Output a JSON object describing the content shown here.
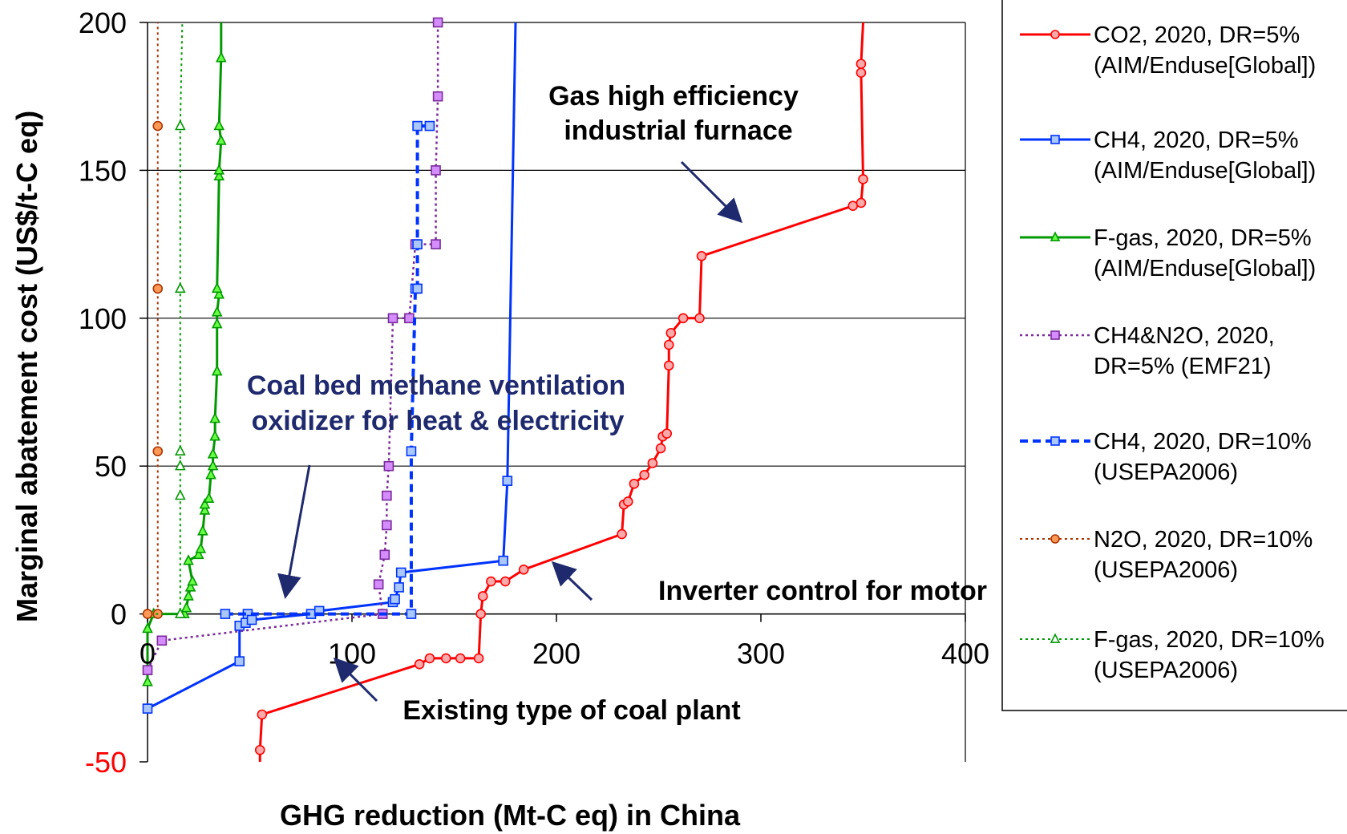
{
  "chart_data": {
    "type": "line",
    "xlabel": "GHG reduction (Mt-C eq) in China",
    "ylabel": "Marginal abatement cost (US$/t-C eq)",
    "xlim": [
      0,
      400
    ],
    "ylim": [
      -50,
      200
    ],
    "xticks": [
      0,
      100,
      200,
      300,
      400
    ],
    "yticks": [
      -50,
      0,
      50,
      100,
      150,
      200
    ],
    "xtick_labels": [
      "0",
      "100",
      "200",
      "300",
      "400"
    ],
    "ytick_labels": [
      "-50",
      "0",
      "50",
      "100",
      "150",
      "200"
    ],
    "ytick_colors": [
      "#ff0000",
      "#000000",
      "#000000",
      "#000000",
      "#000000",
      "#000000"
    ],
    "grid": "horizontal",
    "legend_position": "right",
    "series": [
      {
        "name": "CO2, 2020, DR=5% (AIM/Enduse[Global])",
        "legend_lines": [
          "CO2, 2020, DR=5%",
          "(AIM/Enduse[Global])"
        ],
        "color": "#ff0000",
        "dash": "solid",
        "marker": "circle",
        "marker_fill": "#ffaaaa",
        "stroke_width": 3,
        "points": [
          [
            55,
            -50
          ],
          [
            55,
            -46
          ],
          [
            56,
            -34
          ],
          [
            133,
            -17
          ],
          [
            138,
            -15
          ],
          [
            146,
            -15
          ],
          [
            153,
            -15
          ],
          [
            162,
            -15
          ],
          [
            163,
            0
          ],
          [
            164,
            6
          ],
          [
            168,
            11
          ],
          [
            175,
            11
          ],
          [
            184,
            15
          ],
          [
            232,
            27
          ],
          [
            233,
            37
          ],
          [
            235,
            38
          ],
          [
            238,
            44
          ],
          [
            243,
            47
          ],
          [
            247,
            51
          ],
          [
            251,
            56
          ],
          [
            252,
            60
          ],
          [
            254,
            61
          ],
          [
            255,
            84
          ],
          [
            255,
            91
          ],
          [
            256,
            95
          ],
          [
            262,
            100
          ],
          [
            270,
            100
          ],
          [
            271,
            121
          ],
          [
            345,
            138
          ],
          [
            349,
            139
          ],
          [
            350,
            147
          ],
          [
            349,
            183
          ],
          [
            349,
            186
          ],
          [
            350,
            200
          ]
        ],
        "plain_points": [
          0,
          33
        ]
      },
      {
        "name": "CH4, 2020, DR=5% (AIM/Enduse[Global])",
        "legend_lines": [
          "CH4, 2020, DR=5%",
          "(AIM/Enduse[Global])"
        ],
        "color": "#0033ff",
        "dash": "solid",
        "marker": "square",
        "marker_fill": "#aac8ff",
        "stroke_width": 3,
        "points": [
          [
            0,
            -32
          ],
          [
            45,
            -16
          ],
          [
            45,
            -4
          ],
          [
            48,
            -3
          ],
          [
            49,
            0
          ],
          [
            51,
            -2
          ],
          [
            80,
            0
          ],
          [
            84,
            1
          ],
          [
            120,
            4
          ],
          [
            121,
            5
          ],
          [
            123,
            9
          ],
          [
            124,
            14
          ],
          [
            174,
            18
          ],
          [
            176,
            45
          ],
          [
            180,
            200
          ]
        ],
        "plain_points": [
          14
        ]
      },
      {
        "name": "F-gas, 2020, DR=5% (AIM/Enduse[Global])",
        "legend_lines": [
          "F-gas, 2020, DR=5%",
          "(AIM/Enduse[Global])"
        ],
        "color": "#009900",
        "dash": "solid",
        "marker": "triangle",
        "marker_fill": "#66ff44",
        "stroke_width": 3,
        "points": [
          [
            0,
            -23
          ],
          [
            0,
            -5
          ],
          [
            3,
            0
          ],
          [
            18,
            0
          ],
          [
            19,
            2
          ],
          [
            20,
            6
          ],
          [
            21,
            9
          ],
          [
            22,
            11
          ],
          [
            20,
            18
          ],
          [
            25,
            20
          ],
          [
            26,
            22
          ],
          [
            27,
            28
          ],
          [
            28,
            35
          ],
          [
            28,
            37
          ],
          [
            30,
            39
          ],
          [
            31,
            47
          ],
          [
            32,
            50
          ],
          [
            32,
            54
          ],
          [
            33,
            60
          ],
          [
            33,
            66
          ],
          [
            34,
            82
          ],
          [
            34,
            98
          ],
          [
            34,
            102
          ],
          [
            35,
            108
          ],
          [
            34,
            110
          ],
          [
            35,
            148
          ],
          [
            35,
            150
          ],
          [
            36,
            160
          ],
          [
            35,
            165
          ],
          [
            36,
            188
          ],
          [
            36,
            200
          ]
        ],
        "plain_points": [
          30
        ]
      },
      {
        "name": "CH4&N2O, 2020, DR=5% (EMF21)",
        "legend_lines": [
          "CH4&N2O, 2020,",
          "DR=5% (EMF21)"
        ],
        "color": "#7a2a9a",
        "dash": "dotted",
        "marker": "square",
        "marker_fill": "#d48cff",
        "stroke_width": 2.5,
        "points": [
          [
            0,
            -19
          ],
          [
            7,
            -9
          ],
          [
            115,
            0
          ],
          [
            113,
            10
          ],
          [
            116,
            20
          ],
          [
            117,
            30
          ],
          [
            117,
            40
          ],
          [
            118,
            50
          ],
          [
            120,
            100
          ],
          [
            128,
            100
          ],
          [
            131,
            125
          ],
          [
            141,
            125
          ],
          [
            141,
            150
          ],
          [
            142,
            175
          ],
          [
            142,
            200
          ]
        ]
      },
      {
        "name": "CH4, 2020, DR=10% (USEPA2006)",
        "legend_lines": [
          "CH4, 2020, DR=10%",
          "(USEPA2006)"
        ],
        "color": "#0033ff",
        "dash": "dashed",
        "marker": "square",
        "marker_fill": "#aac8ff",
        "stroke_width": 4,
        "points": [
          [
            38,
            0
          ],
          [
            129,
            0
          ],
          [
            129,
            55
          ],
          [
            131,
            110
          ],
          [
            132,
            110
          ],
          [
            132,
            125
          ],
          [
            132,
            165
          ],
          [
            138,
            165
          ]
        ]
      },
      {
        "name": "N2O, 2020, DR=10% (USEPA2006)",
        "legend_lines": [
          "N2O, 2020, DR=10%",
          "(USEPA2006)"
        ],
        "color": "#aa3300",
        "dash": "dotted",
        "marker": "circle",
        "marker_fill": "#ff9955",
        "stroke_width": 2,
        "points": [
          [
            0,
            0
          ],
          [
            5,
            0
          ],
          [
            5,
            55
          ],
          [
            5,
            110
          ],
          [
            5,
            165
          ],
          [
            5,
            200
          ]
        ],
        "plain_points": [
          5
        ]
      },
      {
        "name": "F-gas, 2020, DR=10% (USEPA2006)",
        "legend_lines": [
          "F-gas, 2020, DR=10%",
          "(USEPA2006)"
        ],
        "color": "#009900",
        "dash": "dotted",
        "marker": "triangle",
        "marker_fill": "#ffffff",
        "stroke_width": 2,
        "points": [
          [
            4,
            0
          ],
          [
            16,
            0
          ],
          [
            16,
            40
          ],
          [
            16,
            50
          ],
          [
            16,
            55
          ],
          [
            16,
            110
          ],
          [
            16,
            165
          ],
          [
            17,
            200
          ]
        ],
        "plain_points": [
          0,
          7
        ]
      }
    ],
    "annotations": [
      {
        "lines": [
          "Gas high efficiency",
          "industrial furnace"
        ],
        "style": "black"
      },
      {
        "lines": [
          "Coal bed methane ventilation",
          "oxidizer for heat & electricity"
        ],
        "style": "blue"
      },
      {
        "lines": [
          "Inverter control for motor"
        ],
        "style": "black"
      },
      {
        "lines": [
          "Existing type of coal plant"
        ],
        "style": "black"
      }
    ]
  }
}
